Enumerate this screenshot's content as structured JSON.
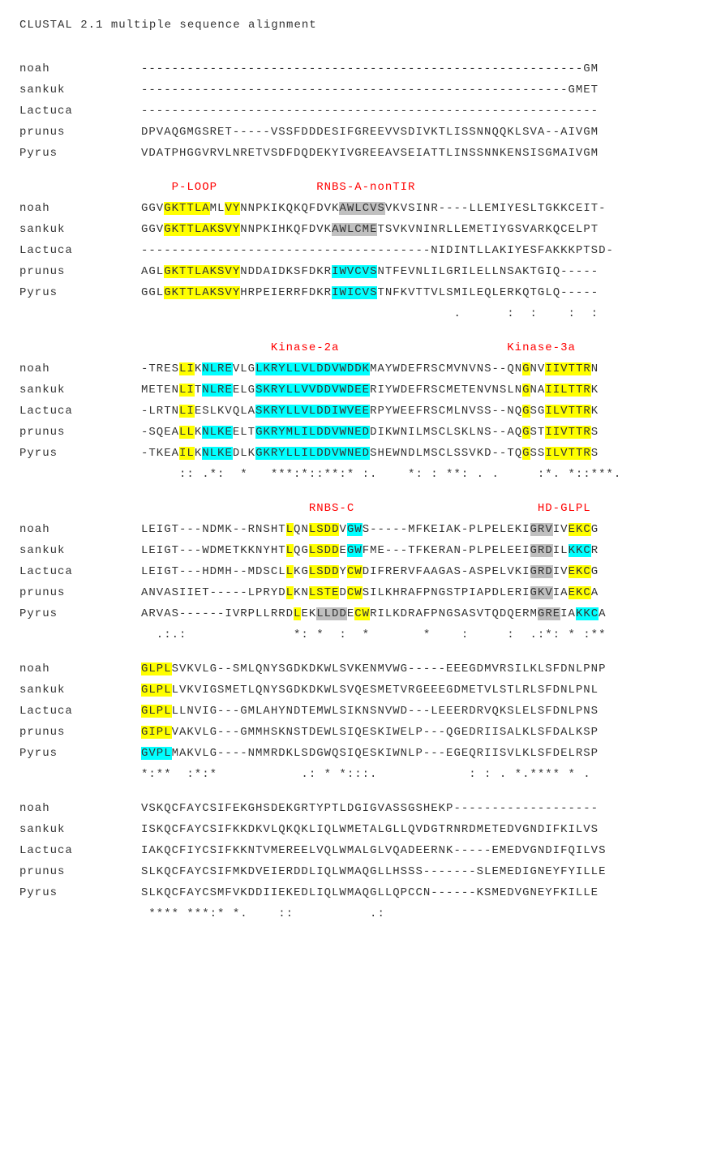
{
  "title": "CLUSTAL 2.1 multiple sequence alignment",
  "colors": {
    "highlight_yellow": "#ffff00",
    "highlight_cyan": "#00ffff",
    "highlight_gray": "#c0c0c0",
    "annotation_red": "#ff0000",
    "text": "#333333",
    "background": "#ffffff"
  },
  "labels": [
    "noah",
    "sankuk",
    "Lactuca",
    "prunus",
    "Pyrus"
  ],
  "blocks": [
    {
      "annotations": [],
      "rows": [
        {
          "label": "noah",
          "segs": [
            {
              "t": "----------------------------------------------------------GM",
              "c": null
            }
          ]
        },
        {
          "label": "sankuk",
          "segs": [
            {
              "t": "--------------------------------------------------------GMET",
              "c": null
            }
          ]
        },
        {
          "label": "Lactuca",
          "segs": [
            {
              "t": "------------------------------------------------------------",
              "c": null
            }
          ]
        },
        {
          "label": "prunus",
          "segs": [
            {
              "t": "DPVAQGMGSRET-----VSSFDDDESIFGREEVVSDIVKTLISSNNQQKLSVA--AIVGM",
              "c": null
            }
          ]
        },
        {
          "label": "Pyrus",
          "segs": [
            {
              "t": "VDATPHGGVRVLNRETVSDFDQDEKYIVGREEAVSEIATTLINSSNNKENSISGMAIVGM",
              "c": null
            }
          ]
        }
      ],
      "conservation": ""
    },
    {
      "annotations": [
        {
          "pad": 4,
          "text": "P-LOOP"
        },
        {
          "pad": 13,
          "text": "RNBS-A-nonTIR"
        }
      ],
      "rows": [
        {
          "label": "noah",
          "segs": [
            {
              "t": "GGV",
              "c": null
            },
            {
              "t": "GKTTLA",
              "c": "yellow"
            },
            {
              "t": "ML",
              "c": null
            },
            {
              "t": "VY",
              "c": "yellow"
            },
            {
              "t": "NNPKIKQKQFDVK",
              "c": null
            },
            {
              "t": "AWLCVS",
              "c": "gray"
            },
            {
              "t": "VKVSINR----LLEMIYESLTGKKCEIT-",
              "c": null
            }
          ]
        },
        {
          "label": "sankuk",
          "segs": [
            {
              "t": "GGV",
              "c": null
            },
            {
              "t": "GKTTLAKSVY",
              "c": "yellow"
            },
            {
              "t": "NNPKIHKQFDVK",
              "c": null
            },
            {
              "t": "AWLCME",
              "c": "gray"
            },
            {
              "t": "TSVKVNINRLLEMETIYGSVARKQCELPT",
              "c": null
            }
          ]
        },
        {
          "label": "Lactuca",
          "segs": [
            {
              "t": "--------------------------------------NIDINTLLAKIYESFAKKKPTSD-",
              "c": null
            }
          ]
        },
        {
          "label": "prunus",
          "segs": [
            {
              "t": "AGL",
              "c": null
            },
            {
              "t": "GKTTLAKSVY",
              "c": "yellow"
            },
            {
              "t": "NDDAIDKSFDKR",
              "c": null
            },
            {
              "t": "IWVCVS",
              "c": "cyan"
            },
            {
              "t": "NTFEVNLILGRILELLNSAKTGIQ-----",
              "c": null
            }
          ]
        },
        {
          "label": "Pyrus",
          "segs": [
            {
              "t": "GGL",
              "c": null
            },
            {
              "t": "GKTTLAKSVY",
              "c": "yellow"
            },
            {
              "t": "HRPEIERRFDKR",
              "c": null
            },
            {
              "t": "IWICVS",
              "c": "cyan"
            },
            {
              "t": "TNFKVTTVLSMILEQLERKQTGLQ-----",
              "c": null
            }
          ]
        }
      ],
      "conservation": "                                         .      :  :    :  :"
    },
    {
      "annotations": [
        {
          "pad": 17,
          "text": "Kinase-2a"
        },
        {
          "pad": 22,
          "text": "Kinase-3a"
        }
      ],
      "rows": [
        {
          "label": "noah",
          "segs": [
            {
              "t": "-TRES",
              "c": null
            },
            {
              "t": "LI",
              "c": "yellow"
            },
            {
              "t": "K",
              "c": null
            },
            {
              "t": "NLRE",
              "c": "cyan"
            },
            {
              "t": "VLG",
              "c": null
            },
            {
              "t": "LKRYLLVLDDVWDDK",
              "c": "cyan"
            },
            {
              "t": "MAYWDEFRSCMVNVNS--QN",
              "c": null
            },
            {
              "t": "G",
              "c": "yellow"
            },
            {
              "t": "NV",
              "c": null
            },
            {
              "t": "IIVTTR",
              "c": "yellow"
            },
            {
              "t": "N",
              "c": null
            }
          ]
        },
        {
          "label": "sankuk",
          "segs": [
            {
              "t": "METEN",
              "c": null
            },
            {
              "t": "LI",
              "c": "yellow"
            },
            {
              "t": "T",
              "c": null
            },
            {
              "t": "NLRE",
              "c": "cyan"
            },
            {
              "t": "ELG",
              "c": null
            },
            {
              "t": "SKRYLLVVDDVWDEE",
              "c": "cyan"
            },
            {
              "t": "RIYWDEFRSCMETENVNSLN",
              "c": null
            },
            {
              "t": "G",
              "c": "yellow"
            },
            {
              "t": "NA",
              "c": null
            },
            {
              "t": "IILTTR",
              "c": "yellow"
            },
            {
              "t": "K",
              "c": null
            }
          ]
        },
        {
          "label": "Lactuca",
          "segs": [
            {
              "t": "-LRTN",
              "c": null
            },
            {
              "t": "LI",
              "c": "yellow"
            },
            {
              "t": "ESLKVQLA",
              "c": null
            },
            {
              "t": "SKRYLLVLDDIWVEE",
              "c": "cyan"
            },
            {
              "t": "RPYWEEFRSCMLNVSS--NQ",
              "c": null
            },
            {
              "t": "G",
              "c": "yellow"
            },
            {
              "t": "SG",
              "c": null
            },
            {
              "t": "ILVTTR",
              "c": "yellow"
            },
            {
              "t": "K",
              "c": null
            }
          ]
        },
        {
          "label": "prunus",
          "segs": [
            {
              "t": "-SQEA",
              "c": null
            },
            {
              "t": "LL",
              "c": "yellow"
            },
            {
              "t": "K",
              "c": null
            },
            {
              "t": "NLKE",
              "c": "cyan"
            },
            {
              "t": "ELT",
              "c": null
            },
            {
              "t": "GKRYMLILDDVWNED",
              "c": "cyan"
            },
            {
              "t": "DIKWNILMSCLSKLNS--AQ",
              "c": null
            },
            {
              "t": "G",
              "c": "yellow"
            },
            {
              "t": "ST",
              "c": null
            },
            {
              "t": "IIVTTR",
              "c": "yellow"
            },
            {
              "t": "S",
              "c": null
            }
          ]
        },
        {
          "label": "Pyrus",
          "segs": [
            {
              "t": "-TKEA",
              "c": null
            },
            {
              "t": "IL",
              "c": "yellow"
            },
            {
              "t": "K",
              "c": null
            },
            {
              "t": "NLKE",
              "c": "cyan"
            },
            {
              "t": "DLK",
              "c": null
            },
            {
              "t": "GKRYLLILDDVWNED",
              "c": "cyan"
            },
            {
              "t": "SHEWNDLMSCLSSVKD--TQ",
              "c": null
            },
            {
              "t": "G",
              "c": "yellow"
            },
            {
              "t": "SS",
              "c": null
            },
            {
              "t": "ILVTTR",
              "c": "yellow"
            },
            {
              "t": "S",
              "c": null
            }
          ]
        }
      ],
      "conservation": "     :: .*:  *   ***:*::**:* :.    *: : **: . .     :*. *::***."
    },
    {
      "annotations": [
        {
          "pad": 22,
          "text": "RNBS-C"
        },
        {
          "pad": 24,
          "text": "HD-GLPL"
        }
      ],
      "rows": [
        {
          "label": "noah",
          "segs": [
            {
              "t": "LEIGT---NDMK--RNSHT",
              "c": null
            },
            {
              "t": "L",
              "c": "yellow"
            },
            {
              "t": "QN",
              "c": null
            },
            {
              "t": "LSDD",
              "c": "yellow"
            },
            {
              "t": "V",
              "c": null
            },
            {
              "t": "GW",
              "c": "cyan"
            },
            {
              "t": "S-----MFKEIAK-PLPELEKI",
              "c": null
            },
            {
              "t": "GRV",
              "c": "gray"
            },
            {
              "t": "IV",
              "c": null
            },
            {
              "t": "EKC",
              "c": "yellow"
            },
            {
              "t": "G",
              "c": null
            }
          ]
        },
        {
          "label": "sankuk",
          "segs": [
            {
              "t": "LEIGT---WDMETKKNYHT",
              "c": null
            },
            {
              "t": "L",
              "c": "yellow"
            },
            {
              "t": "QG",
              "c": null
            },
            {
              "t": "LSDD",
              "c": "yellow"
            },
            {
              "t": "E",
              "c": null
            },
            {
              "t": "GW",
              "c": "cyan"
            },
            {
              "t": "FME---TFKERAN-PLPELEEI",
              "c": null
            },
            {
              "t": "GRD",
              "c": "gray"
            },
            {
              "t": "IL",
              "c": null
            },
            {
              "t": "KKC",
              "c": "cyan"
            },
            {
              "t": "R",
              "c": null
            }
          ]
        },
        {
          "label": "Lactuca",
          "segs": [
            {
              "t": "LEIGT---HDMH--MDSCL",
              "c": null
            },
            {
              "t": "L",
              "c": "yellow"
            },
            {
              "t": "KG",
              "c": null
            },
            {
              "t": "LSDD",
              "c": "yellow"
            },
            {
              "t": "Y",
              "c": null
            },
            {
              "t": "CW",
              "c": "yellow"
            },
            {
              "t": "DIFRERVFAAGAS-ASPELVKI",
              "c": null
            },
            {
              "t": "GRD",
              "c": "gray"
            },
            {
              "t": "IV",
              "c": null
            },
            {
              "t": "EKC",
              "c": "yellow"
            },
            {
              "t": "G",
              "c": null
            }
          ]
        },
        {
          "label": "prunus",
          "segs": [
            {
              "t": "ANVASIIET-----LPRYD",
              "c": null
            },
            {
              "t": "L",
              "c": "yellow"
            },
            {
              "t": "KN",
              "c": null
            },
            {
              "t": "LSTE",
              "c": "yellow"
            },
            {
              "t": "D",
              "c": null
            },
            {
              "t": "CW",
              "c": "yellow"
            },
            {
              "t": "SILKHRAFPNGSTPIAPDLERI",
              "c": null
            },
            {
              "t": "GKV",
              "c": "gray"
            },
            {
              "t": "IA",
              "c": null
            },
            {
              "t": "EKC",
              "c": "yellow"
            },
            {
              "t": "A",
              "c": null
            }
          ]
        },
        {
          "label": "Pyrus",
          "segs": [
            {
              "t": "ARVAS------IVRPLLRRD",
              "c": null
            },
            {
              "t": "L",
              "c": "yellow"
            },
            {
              "t": "EK",
              "c": null
            },
            {
              "t": "LLDD",
              "c": "gray"
            },
            {
              "t": "E",
              "c": null
            },
            {
              "t": "CW",
              "c": "yellow"
            },
            {
              "t": "RILKDRAFPNGSASVTQDQERM",
              "c": null
            },
            {
              "t": "GRE",
              "c": "gray"
            },
            {
              "t": "IA",
              "c": null
            },
            {
              "t": "KKC",
              "c": "cyan"
            },
            {
              "t": "A",
              "c": null
            }
          ]
        }
      ],
      "conservation": "  .:.:              *: *  :  *       *    :     :  .:*: * :**"
    },
    {
      "annotations": [],
      "rows": [
        {
          "label": "noah",
          "segs": [
            {
              "t": "GLPL",
              "c": "yellow"
            },
            {
              "t": "SVKVLG--SMLQNYSGDKDKWLSVKENMVWG-----EEEGDMVRSILKLSFDNLPNP",
              "c": null
            }
          ]
        },
        {
          "label": "sankuk",
          "segs": [
            {
              "t": "GLPL",
              "c": "yellow"
            },
            {
              "t": "LVKVIGSMETLQNYSGDKDKWLSVQESMETVRGEEEGDMETVLSTLRLSFDNLPNL",
              "c": null
            }
          ]
        },
        {
          "label": "Lactuca",
          "segs": [
            {
              "t": "GLPL",
              "c": "yellow"
            },
            {
              "t": "LLNVIG---GMLAHYNDTEMWLSIKNSNVWD---LEEERDRVQKSLELSFDNLPNS",
              "c": null
            }
          ]
        },
        {
          "label": "prunus",
          "segs": [
            {
              "t": "GIPL",
              "c": "yellow"
            },
            {
              "t": "VAKVLG---GMMHSKNSTDEWLSIQESKIWELP---QGEDRIISALKLSFDALKSP",
              "c": null
            }
          ]
        },
        {
          "label": "Pyrus",
          "segs": [
            {
              "t": "GVPL",
              "c": "cyan"
            },
            {
              "t": "MAKVLG----NMMRDKLSDGWQSIQESKIWNLP---EGEQRIISVLKLSFDELRSP",
              "c": null
            }
          ]
        }
      ],
      "conservation": "*:**  :*:*           .: * *:::.            : : . *.**** * ."
    },
    {
      "annotations": [],
      "rows": [
        {
          "label": "noah",
          "segs": [
            {
              "t": "VSKQCFAYCSIFEKGHSDEKGRTYPTLDGIGVASSGSHEKP-------------------",
              "c": null
            }
          ]
        },
        {
          "label": "sankuk",
          "segs": [
            {
              "t": "ISKQCFAYCSIFKKDKVLQKQKLIQLWMETALGLLQVDGTRNRDMETEDVGNDIFKILVS",
              "c": null
            }
          ]
        },
        {
          "label": "Lactuca",
          "segs": [
            {
              "t": "IAKQCFIYCSIFKKNTVMEREELVQLWMALGLVQADEERNK-----EMEDVGNDIFQILVS",
              "c": null
            }
          ]
        },
        {
          "label": "prunus",
          "segs": [
            {
              "t": "SLKQCFAYCSIFMKDVEIERDDLIQLWMAQGLLHSSS-------SLEMEDIGNEYFYILLE",
              "c": null
            }
          ]
        },
        {
          "label": "Pyrus",
          "segs": [
            {
              "t": "SLKQCFAYCSMFVKDDIIEKEDLIQLWMAQGLLQPCCN------KSMEDVGNEYFKILLE",
              "c": null
            }
          ]
        }
      ],
      "conservation": " **** ***:* *.    ::          .:"
    }
  ]
}
